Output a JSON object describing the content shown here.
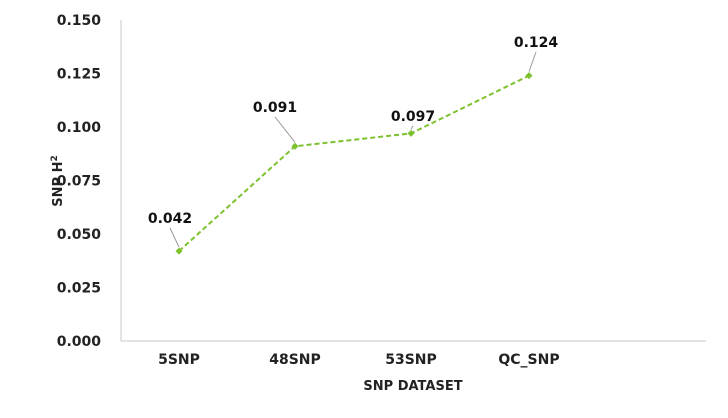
{
  "chart_data": {
    "type": "line",
    "title": "",
    "xlabel": "SNP DATASET",
    "ylabel_main": "SNP H",
    "ylabel_sup": "2",
    "categories": [
      "5SNP",
      "48SNP",
      "53SNP",
      "QC_SNP"
    ],
    "series": [
      {
        "values": [
          0.042,
          0.091,
          0.097,
          0.124
        ]
      }
    ],
    "data_labels": [
      "0.042",
      "0.091",
      "0.097",
      "0.124"
    ],
    "yticks": [
      "0.000",
      "0.025",
      "0.050",
      "0.075",
      "0.100",
      "0.125",
      "0.150"
    ],
    "ylim": [
      0,
      0.15
    ],
    "grid": false,
    "legend": "none",
    "line_style": "dashed",
    "colors": {
      "line": "#7DC12E",
      "marker": "#7DC12E",
      "axis": "#C8C8C8",
      "leader": "#9A9A9A"
    }
  }
}
